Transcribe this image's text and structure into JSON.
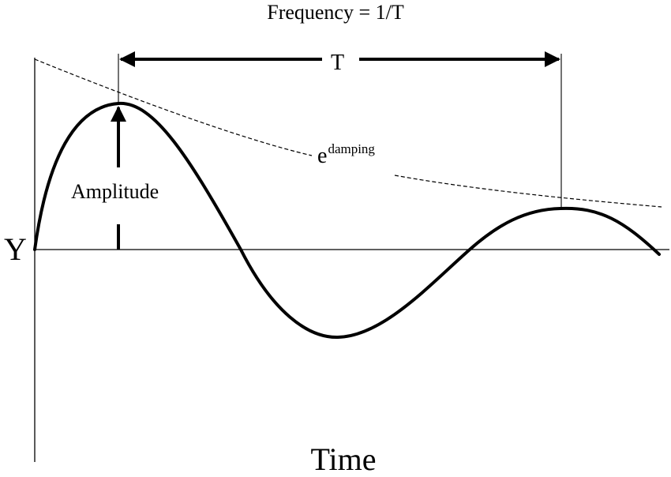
{
  "diagram": {
    "title": "Frequency = 1/T",
    "period_label": "T",
    "amplitude_label": "Amplitude",
    "y_axis_label": "Y",
    "x_axis_label": "Time",
    "envelope_base": "e",
    "envelope_exponent": "damping"
  },
  "colors": {
    "ink": "#000000",
    "background": "#ffffff"
  }
}
